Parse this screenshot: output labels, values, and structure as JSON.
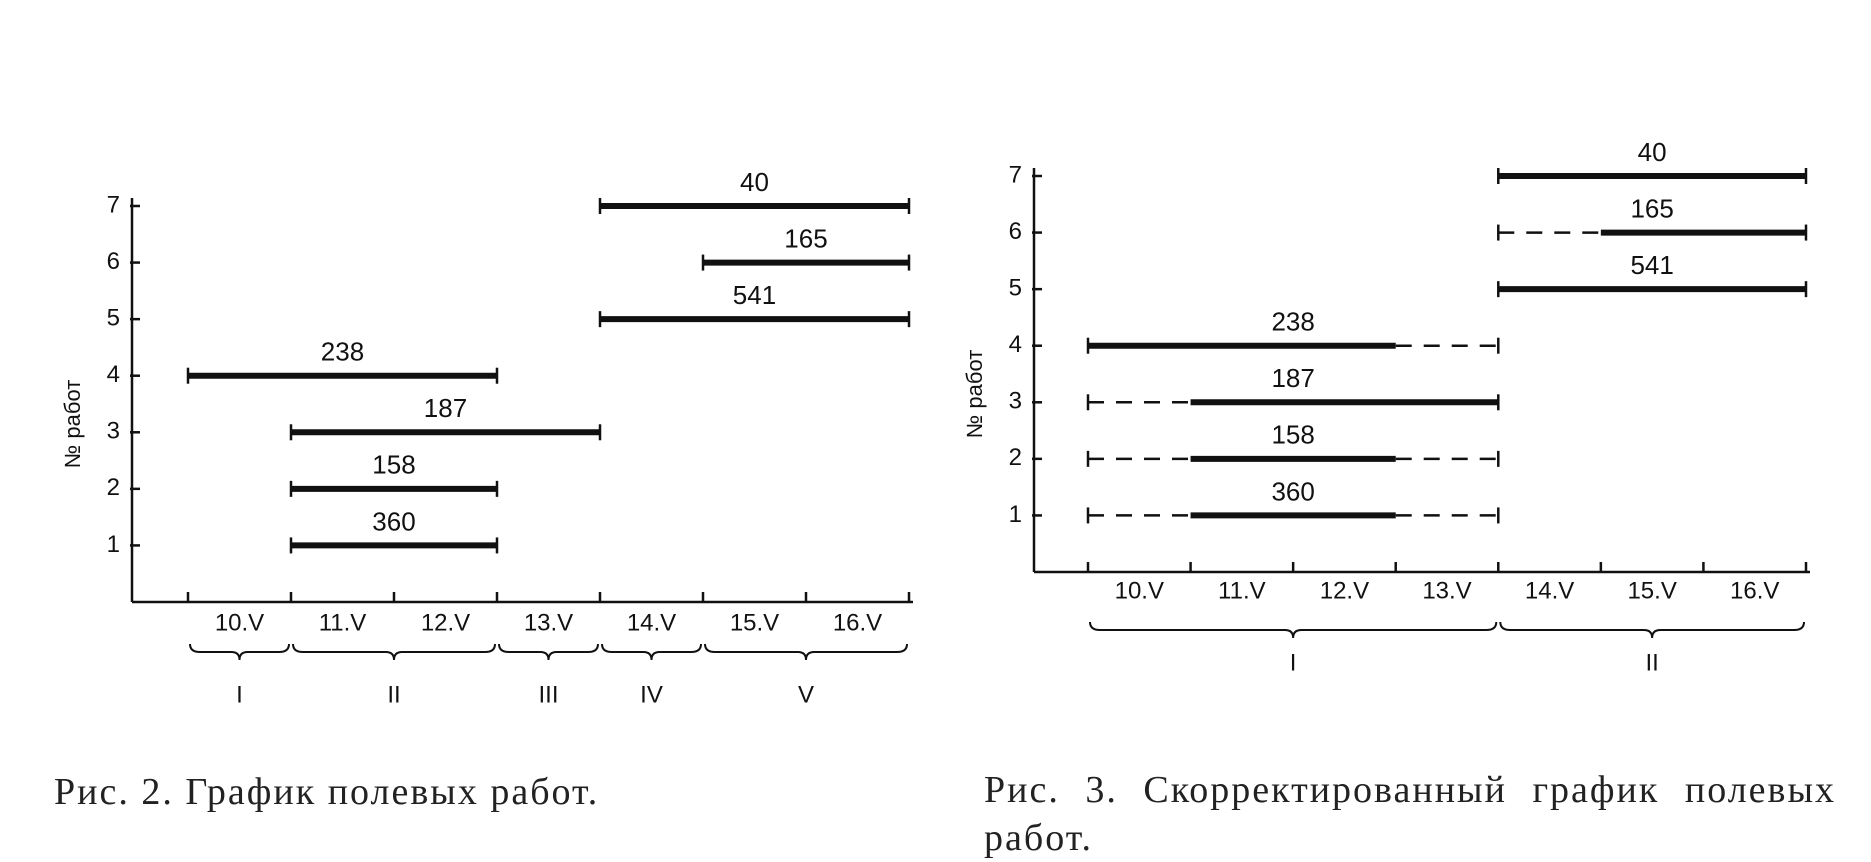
{
  "chart_data": [
    {
      "type": "gantt",
      "y_label": "№ работ",
      "caption": "Рис. 2. График полевых работ.",
      "categories": [
        "10.V",
        "11.V",
        "12.V",
        "13.V",
        "14.V",
        "15.V",
        "16.V"
      ],
      "xlim": [
        0,
        7
      ],
      "xticks": [
        0,
        1,
        2,
        3,
        4,
        5,
        6,
        7
      ],
      "ylim": [
        0,
        7
      ],
      "yticks": [
        1,
        2,
        3,
        4,
        5,
        6,
        7
      ],
      "bars": [
        {
          "job": 7,
          "id": 40,
          "segments": [
            {
              "start": 4,
              "end": 7,
              "style": "solid"
            }
          ]
        },
        {
          "job": 6,
          "id": 165,
          "segments": [
            {
              "start": 5,
              "end": 7,
              "style": "solid"
            }
          ]
        },
        {
          "job": 5,
          "id": 541,
          "segments": [
            {
              "start": 4,
              "end": 7,
              "style": "solid"
            }
          ]
        },
        {
          "job": 4,
          "id": 238,
          "segments": [
            {
              "start": 0,
              "end": 3,
              "style": "solid"
            }
          ]
        },
        {
          "job": 3,
          "id": 187,
          "segments": [
            {
              "start": 1,
              "end": 4,
              "style": "solid"
            }
          ]
        },
        {
          "job": 2,
          "id": 158,
          "segments": [
            {
              "start": 1,
              "end": 3,
              "style": "solid"
            }
          ]
        },
        {
          "job": 1,
          "id": 360,
          "segments": [
            {
              "start": 1,
              "end": 3,
              "style": "solid"
            }
          ]
        }
      ],
      "phases": [
        {
          "label": "I",
          "start": 0,
          "end": 1
        },
        {
          "label": "II",
          "start": 1,
          "end": 3
        },
        {
          "label": "III",
          "start": 3,
          "end": 4
        },
        {
          "label": "IV",
          "start": 4,
          "end": 5
        },
        {
          "label": "V",
          "start": 5,
          "end": 7
        }
      ]
    },
    {
      "type": "gantt",
      "y_label": "№ работ",
      "caption": "Рис. 3. Скорректированный график полевых работ.",
      "categories": [
        "10.V",
        "11.V",
        "12.V",
        "13.V",
        "14.V",
        "15.V",
        "16.V"
      ],
      "xlim": [
        0,
        7
      ],
      "xticks": [
        0,
        1,
        2,
        3,
        4,
        5,
        6,
        7
      ],
      "ylim": [
        0,
        7
      ],
      "yticks": [
        1,
        2,
        3,
        4,
        5,
        6,
        7
      ],
      "bars": [
        {
          "job": 7,
          "id": 40,
          "segments": [
            {
              "start": 4,
              "end": 7,
              "style": "solid"
            }
          ]
        },
        {
          "job": 6,
          "id": 165,
          "segments": [
            {
              "start": 4,
              "end": 5,
              "style": "dashed"
            },
            {
              "start": 5,
              "end": 7,
              "style": "solid"
            }
          ]
        },
        {
          "job": 5,
          "id": 541,
          "segments": [
            {
              "start": 4,
              "end": 7,
              "style": "solid"
            }
          ]
        },
        {
          "job": 4,
          "id": 238,
          "segments": [
            {
              "start": 0,
              "end": 3,
              "style": "solid"
            },
            {
              "start": 3,
              "end": 4,
              "style": "dashed"
            }
          ]
        },
        {
          "job": 3,
          "id": 187,
          "segments": [
            {
              "start": 0,
              "end": 1,
              "style": "dashed"
            },
            {
              "start": 1,
              "end": 4,
              "style": "solid"
            }
          ]
        },
        {
          "job": 2,
          "id": 158,
          "segments": [
            {
              "start": 0,
              "end": 1,
              "style": "dashed"
            },
            {
              "start": 1,
              "end": 3,
              "style": "solid"
            },
            {
              "start": 3,
              "end": 4,
              "style": "dashed"
            }
          ]
        },
        {
          "job": 1,
          "id": 360,
          "segments": [
            {
              "start": 0,
              "end": 1,
              "style": "dashed"
            },
            {
              "start": 1,
              "end": 3,
              "style": "solid"
            },
            {
              "start": 3,
              "end": 4,
              "style": "dashed"
            }
          ]
        }
      ],
      "phases": [
        {
          "label": "I",
          "start": 0,
          "end": 4
        },
        {
          "label": "II",
          "start": 4,
          "end": 7
        }
      ]
    }
  ]
}
